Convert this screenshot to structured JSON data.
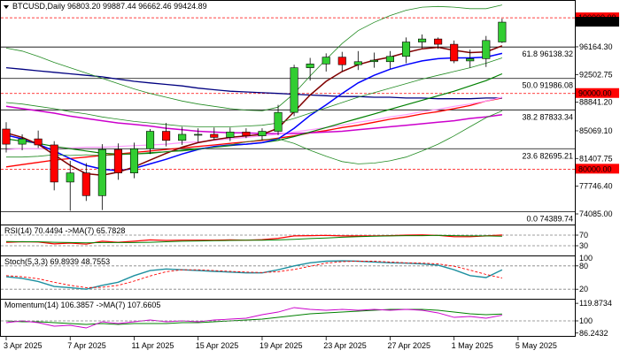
{
  "chart_data": {
    "type": "candlestick",
    "symbol_header": "BTCUSD,Daily  96803.20 99887.44 96662.46 99424.89",
    "price_axis": {
      "min": 74085,
      "max": 102000,
      "ticks": [
        "96164.30",
        "92502.75",
        "88841.20",
        "85069.10",
        "81407.75",
        "77746.40",
        "74085.00"
      ]
    },
    "price_tag_labels": [
      {
        "label": "100000.00",
        "value": 100000,
        "color": "#ff0000",
        "text_color": "#ffffff"
      },
      {
        "label": "99424.89",
        "value": 99424.89,
        "color": "#000000",
        "text_color": "#ffffff"
      },
      {
        "label": "90000.00",
        "value": 90000,
        "color": "#ff0000",
        "text_color": "#ffffff"
      },
      {
        "label": "80000.00",
        "value": 80000,
        "color": "#ff0000",
        "text_color": "#ffffff"
      }
    ],
    "round_levels": [
      100000,
      90000,
      80000
    ],
    "fibo_levels": [
      {
        "label": "61.8 96138.32",
        "value": 96138.32
      },
      {
        "label": "50.0 91986.08",
        "value": 91986.08
      },
      {
        "label": "38.2 87833.34",
        "value": 87833.34
      },
      {
        "label": "23.6 82695.21",
        "value": 82695.21
      },
      {
        "label": "0.0 74389.74",
        "value": 74389.74
      }
    ],
    "x_labels": [
      {
        "label": "3 Apr 2025",
        "index": 0
      },
      {
        "label": "7 Apr 2025",
        "index": 4
      },
      {
        "label": "11 Apr 2025",
        "index": 8
      },
      {
        "label": "15 Apr 2025",
        "index": 12
      },
      {
        "label": "19 Apr 2025",
        "index": 16
      },
      {
        "label": "23 Apr 2025",
        "index": 20
      },
      {
        "label": "27 Apr 2025",
        "index": 24
      },
      {
        "label": "1 May 2025",
        "index": 28
      },
      {
        "label": "5 May 2025",
        "index": 32
      }
    ],
    "candles": [
      [
        85300,
        86200,
        82200,
        83300
      ],
      [
        83300,
        84600,
        82500,
        84000
      ],
      [
        84000,
        85100,
        82800,
        83200
      ],
      [
        83200,
        83700,
        77200,
        78300
      ],
      [
        78300,
        81100,
        74500,
        79500
      ],
      [
        79500,
        80800,
        75800,
        76500
      ],
      [
        76500,
        83300,
        74600,
        82600
      ],
      [
        82600,
        83400,
        78600,
        79500
      ],
      [
        79500,
        83500,
        78800,
        82700
      ],
      [
        82700,
        85300,
        82000,
        85000
      ],
      [
        85000,
        86100,
        83000,
        83800
      ],
      [
        83800,
        85600,
        83200,
        84600
      ],
      [
        84600,
        85400,
        83600,
        84600
      ],
      [
        84600,
        85500,
        83900,
        84200
      ],
      [
        84200,
        85500,
        83700,
        84900
      ],
      [
        84900,
        85400,
        84100,
        84400
      ],
      [
        84400,
        85400,
        83800,
        85000
      ],
      [
        85000,
        88500,
        84500,
        87500
      ],
      [
        87500,
        93800,
        87000,
        93400
      ],
      [
        93400,
        94700,
        91700,
        93900
      ],
      [
        93900,
        95300,
        92900,
        94800
      ],
      [
        94800,
        95500,
        92900,
        93800
      ],
      [
        93800,
        95600,
        93100,
        94200
      ],
      [
        94200,
        95400,
        93400,
        94400
      ],
      [
        94200,
        95600,
        93300,
        94900
      ],
      [
        94900,
        97400,
        94000,
        96800
      ],
      [
        96800,
        97800,
        96000,
        97200
      ],
      [
        97200,
        97400,
        95900,
        96500
      ],
      [
        96500,
        97000,
        94000,
        94300
      ],
      [
        94300,
        95800,
        93400,
        94600
      ],
      [
        94600,
        97600,
        93500,
        97000
      ],
      [
        96803.2,
        99887.44,
        96662.46,
        99424.89
      ]
    ],
    "series": [
      {
        "name": "",
        "color": "#ff0000",
        "width": 1.3,
        "values": [
          80300,
          80600,
          80900,
          81200,
          81400,
          81600,
          81800,
          82000,
          82200,
          82400,
          82600,
          82800,
          83000,
          83200,
          83400,
          83600,
          83800,
          84100,
          84400,
          84800,
          85100,
          85500,
          85800,
          86200,
          86600,
          86900,
          87300,
          87600,
          88000,
          88400,
          89000,
          89400
        ]
      },
      {
        "name": "",
        "color": "#000080",
        "width": 1.3,
        "values": [
          93400,
          93200,
          93000,
          92800,
          92600,
          92400,
          92200,
          91900,
          91600,
          91400,
          91200,
          91000,
          90700,
          90500,
          90300,
          90200,
          90100,
          90000,
          89900,
          89800,
          89700,
          89600,
          89600,
          89500,
          89500,
          89400,
          89400,
          89300,
          89300,
          89300,
          89400,
          89400
        ]
      },
      {
        "name": "",
        "color": "#cc00cc",
        "width": 1.5,
        "values": [
          88300,
          88000,
          87700,
          87400,
          87000,
          86700,
          86400,
          86100,
          85900,
          85700,
          85400,
          85200,
          85000,
          84900,
          84800,
          84800,
          84700,
          84700,
          84700,
          84800,
          84900,
          85000,
          85200,
          85400,
          85600,
          85800,
          86000,
          86200,
          86400,
          86700,
          86900,
          87200
        ]
      },
      {
        "name": "",
        "color": "#ff99ff",
        "width": 1.2,
        "values": [
          82600,
          82700,
          82700,
          82800,
          82800,
          82900,
          82900,
          83000,
          83100,
          83200,
          83300,
          83500,
          83600,
          83800,
          84000,
          84200,
          84400,
          84600,
          84900,
          85200,
          85500,
          85800,
          86200,
          86500,
          86900,
          87200,
          87600,
          87900,
          88300,
          88600,
          89000,
          89500
        ]
      },
      {
        "name": "",
        "color": "#008000",
        "width": 1.2,
        "values": [
          84000,
          83700,
          83400,
          83000,
          82700,
          82400,
          82100,
          82000,
          82000,
          82100,
          82300,
          82500,
          82700,
          82900,
          83100,
          83300,
          83500,
          83800,
          84300,
          84900,
          85500,
          86100,
          86700,
          87300,
          87900,
          88500,
          89100,
          89700,
          90300,
          91000,
          91700,
          92600
        ]
      },
      {
        "name": "",
        "color": "#0000ff",
        "width": 1.5,
        "values": [
          84500,
          84000,
          83300,
          82400,
          81400,
          80500,
          80000,
          79800,
          80100,
          80700,
          81300,
          82000,
          82600,
          83000,
          83200,
          83300,
          83500,
          84000,
          85400,
          87100,
          88500,
          90000,
          91400,
          92400,
          93200,
          93800,
          94300,
          94600,
          94700,
          94700,
          94800,
          95300
        ]
      },
      {
        "name": "",
        "color": "#800000",
        "width": 1.5,
        "values": [
          84800,
          84200,
          83300,
          81900,
          80500,
          79400,
          79200,
          79600,
          80300,
          81200,
          82100,
          82900,
          83500,
          83900,
          84200,
          84400,
          84600,
          85400,
          87600,
          89800,
          91600,
          92900,
          93800,
          94400,
          94800,
          95400,
          95900,
          96100,
          95700,
          95400,
          95500,
          96300
        ]
      },
      {
        "name": "",
        "color": "#228B22",
        "width": 0.8,
        "values": [
          88800,
          88600,
          88300,
          88000,
          87600,
          87300,
          86900,
          86600,
          86300,
          86100,
          85900,
          85700,
          85600,
          85600,
          85600,
          85700,
          85800,
          86100,
          86700,
          87400,
          88100,
          88800,
          89500,
          90100,
          90700,
          91300,
          91900,
          92400,
          92900,
          93400,
          94000,
          94700
        ]
      },
      {
        "name": "",
        "color": "#228B22",
        "width": 0.8,
        "values": [
          96000,
          95600,
          94900,
          94100,
          93400,
          92700,
          92000,
          91300,
          90600,
          90000,
          89500,
          89000,
          88600,
          88300,
          88000,
          87800,
          87700,
          88200,
          90000,
          92300,
          94500,
          96600,
          98300,
          99400,
          100300,
          101000,
          101400,
          101500,
          101400,
          101200,
          101200,
          101700
        ]
      },
      {
        "name": "",
        "color": "#228B22",
        "width": 0.8,
        "values": [
          81600,
          81600,
          81700,
          81900,
          81800,
          81900,
          81800,
          81900,
          82000,
          82200,
          82300,
          82400,
          82600,
          82900,
          83200,
          83600,
          83900,
          84000,
          83400,
          82500,
          81700,
          81000,
          80700,
          80800,
          81100,
          81600,
          82400,
          83300,
          84400,
          85600,
          86800,
          87700
        ]
      }
    ],
    "rsi": {
      "label": "RSI(14) 70.4494  ->MA(7) 65.7828",
      "levels": [
        70,
        30
      ],
      "level_labels": [
        "70",
        "30"
      ],
      "range": [
        0,
        100
      ],
      "values": [
        43,
        45,
        44,
        37,
        40,
        36,
        47,
        43,
        47,
        52,
        50,
        51,
        51,
        51,
        52,
        51,
        53,
        58,
        67,
        68,
        69,
        67,
        67,
        67,
        68,
        70,
        71,
        69,
        64,
        64,
        67,
        70.45
      ],
      "ma_values": [
        46,
        45,
        45,
        43,
        42,
        41,
        42,
        42,
        42,
        43,
        45,
        47,
        48,
        49,
        50,
        51,
        51,
        52,
        54,
        57,
        59,
        62,
        64,
        66,
        67,
        68,
        68,
        69,
        68,
        67,
        67,
        65.78
      ]
    },
    "stoch": {
      "label": "Stoch(5,3,3) 69.8939 48.7553",
      "levels": [
        80,
        20
      ],
      "level_labels": [
        "80",
        "20"
      ],
      "top_label": "100",
      "range": [
        0,
        100
      ],
      "values": [
        52,
        48,
        40,
        27,
        24,
        20,
        30,
        38,
        55,
        68,
        72,
        70,
        68,
        66,
        64,
        62,
        62,
        70,
        80,
        88,
        92,
        93,
        92,
        90,
        88,
        87,
        85,
        82,
        70,
        55,
        50,
        69.89
      ],
      "signal_values": [
        55,
        52,
        47,
        38,
        30,
        24,
        25,
        30,
        41,
        54,
        65,
        70,
        70,
        68,
        66,
        64,
        63,
        65,
        71,
        79,
        87,
        91,
        92,
        92,
        90,
        88,
        87,
        85,
        79,
        69,
        58,
        48.76
      ]
    },
    "momentum": {
      "label": "Momentum(14) 106.3857  ->MA(7) 107.6605",
      "tick_labels": [
        "119.8734",
        "100",
        "86.2432"
      ],
      "tick_values": [
        119.8734,
        100,
        86.2432
      ],
      "range": [
        84,
        122
      ],
      "values": [
        98,
        100,
        98,
        94,
        95,
        92,
        99,
        97,
        99,
        101,
        99,
        100,
        99,
        101,
        102,
        103,
        107,
        110,
        115,
        113,
        112,
        113,
        112,
        113,
        112,
        113,
        112,
        109,
        104,
        105,
        103,
        106.39
      ],
      "ma_values": [
        100,
        99,
        99,
        98,
        97,
        96,
        97,
        96,
        97,
        97,
        97,
        98,
        98,
        99,
        100,
        101,
        102,
        104,
        106,
        108,
        109,
        110,
        111,
        112,
        113,
        113,
        113,
        112,
        110,
        108,
        107,
        107.66
      ]
    }
  }
}
